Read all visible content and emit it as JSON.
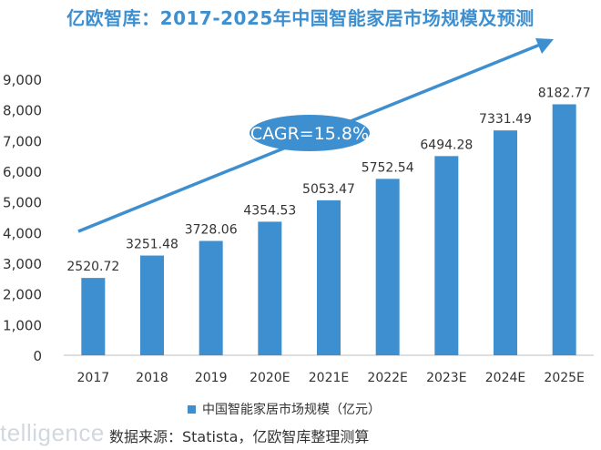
{
  "title": "亿欧智库：2017-2025年中国智能家居市场规模及预测",
  "colors": {
    "title": "#3d8fd0",
    "bar": "#3d8fd0",
    "axis_text": "#333333",
    "arrow": "#3d8fd0",
    "cagr_fill": "#3d8fd0",
    "cagr_text": "#ffffff"
  },
  "chart_data": {
    "type": "bar",
    "categories": [
      "2017",
      "2018",
      "2019",
      "2020E",
      "2021E",
      "2022E",
      "2023E",
      "2024E",
      "2025E"
    ],
    "series": [
      {
        "name": "中国智能家居市场规模（亿元）",
        "values": [
          2520.72,
          3251.48,
          3728.06,
          4354.53,
          5053.47,
          5752.54,
          6494.28,
          7331.49,
          8182.77
        ]
      }
    ],
    "value_labels": [
      "2520.72",
      "3251.48",
      "3728.06",
      "4354.53",
      "5053.47",
      "5752.54",
      "6494.28",
      "7331.49",
      "8182.77"
    ],
    "ylim": [
      0,
      9000
    ],
    "yticks": [
      0,
      1000,
      2000,
      3000,
      4000,
      5000,
      6000,
      7000,
      8000,
      9000
    ],
    "ytick_labels": [
      "0",
      "1,000",
      "2,000",
      "3,000",
      "4,000",
      "5,000",
      "6,000",
      "7,000",
      "8,000",
      "9,000"
    ],
    "grid": false,
    "legend_position": "bottom-center",
    "annotation": "CAGR=15.8%"
  },
  "footer": {
    "watermark": "telligence",
    "source": "数据来源：Statista，亿欧智库整理测算"
  }
}
